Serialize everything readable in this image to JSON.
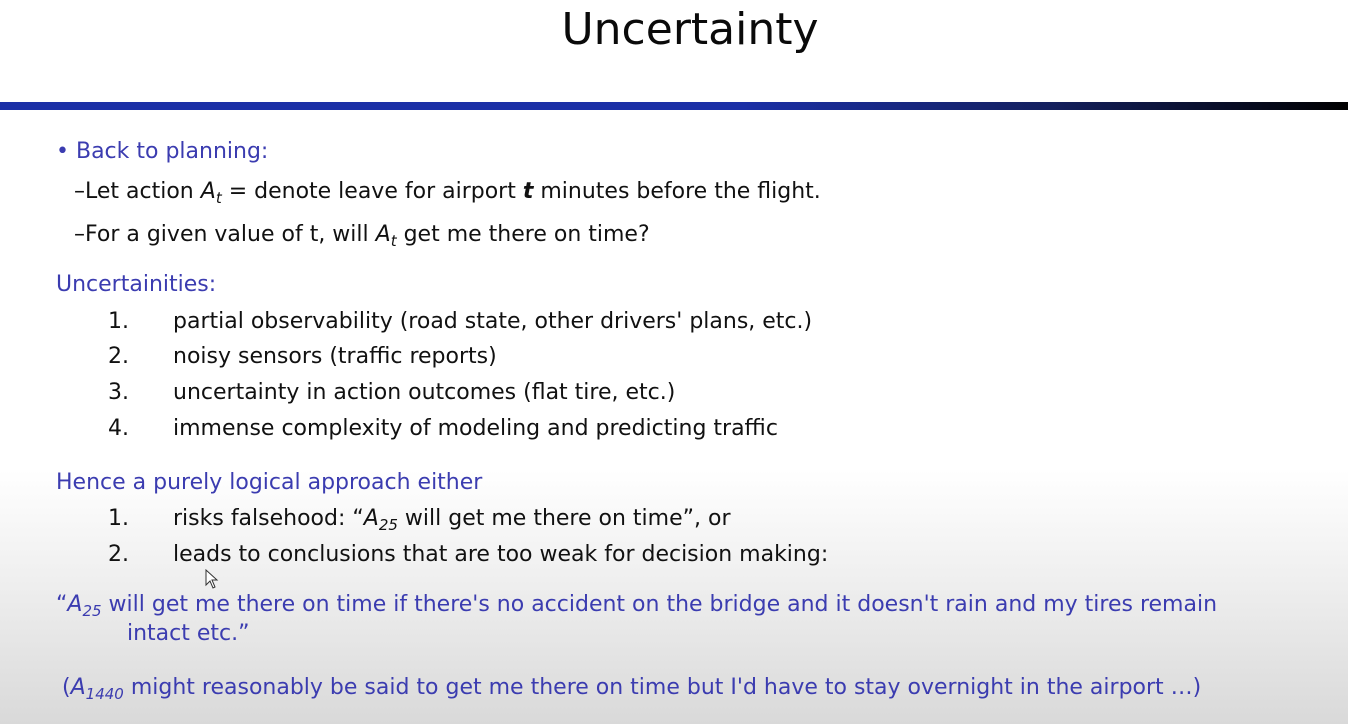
{
  "title": "Uncertainty",
  "bullet": {
    "marker": "•",
    "text": "Back to planning:"
  },
  "sub_items": [
    {
      "dash": "–",
      "pre": "Let action ",
      "var": "A",
      "var_sub": "t",
      "mid": " = denote leave for airport ",
      "bold_var": "t",
      "post": " minutes before the flight."
    },
    {
      "dash": "–",
      "pre": "For a given value of t, will ",
      "var": "A",
      "var_sub": "t",
      "post": " get me there on time?"
    }
  ],
  "uncertainties_heading": "Uncertainities:",
  "uncertainties": [
    {
      "num": "1.",
      "text": "partial observability (road state, other drivers' plans, etc.)"
    },
    {
      "num": "2.",
      "text": "noisy sensors (traffic reports)"
    },
    {
      "num": "3.",
      "text": "uncertainty in action outcomes (flat tire, etc.)"
    },
    {
      "num": "4.",
      "text": "immense complexity of modeling and predicting traffic"
    }
  ],
  "hence_heading": "Hence a purely logical approach either",
  "hence_items": [
    {
      "num": "1.",
      "pre": "risks falsehood: “",
      "var": "A",
      "var_sub": "25",
      "post": " will get me there on time”, or"
    },
    {
      "num": "2.",
      "text": "leads to conclusions that are too weak for decision making:"
    }
  ],
  "quote": {
    "open": "“",
    "var": "A",
    "var_sub": "25",
    "line1_rest": " will get me there on time if there's no accident on the bridge and it doesn't rain and my tires remain",
    "line2": "intact etc.”"
  },
  "footnote": {
    "open": "(",
    "var": "A",
    "var_sub": "1440",
    "rest": " might reasonably be said to get me there on time but I'd have to stay overnight in the airport …)"
  },
  "colors": {
    "heading_blue": "#3b3cb0",
    "rule_blue": "#1b2fa6",
    "text": "#111111"
  }
}
